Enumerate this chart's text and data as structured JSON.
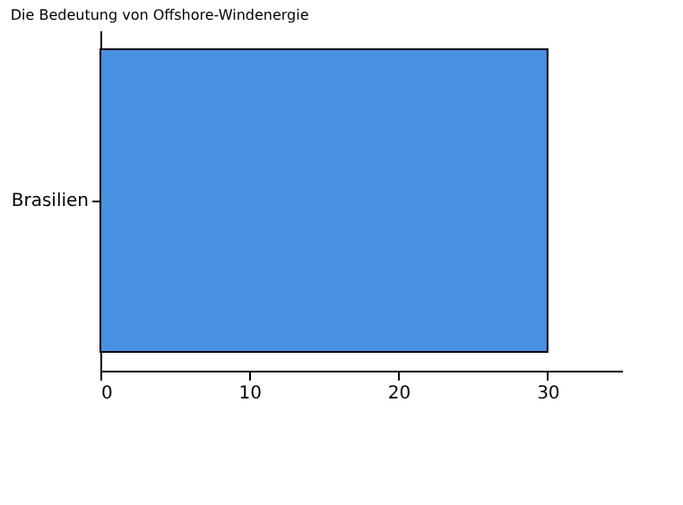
{
  "chart_data": {
    "type": "bar",
    "orientation": "horizontal",
    "title": "Die Bedeutung von Offshore-Windenergie",
    "categories": [
      "Brasilien"
    ],
    "values": [
      30
    ],
    "color": "#4a90e2",
    "xlim": [
      0,
      35
    ],
    "xticks": [
      0,
      10,
      20,
      30
    ],
    "grid": false
  }
}
